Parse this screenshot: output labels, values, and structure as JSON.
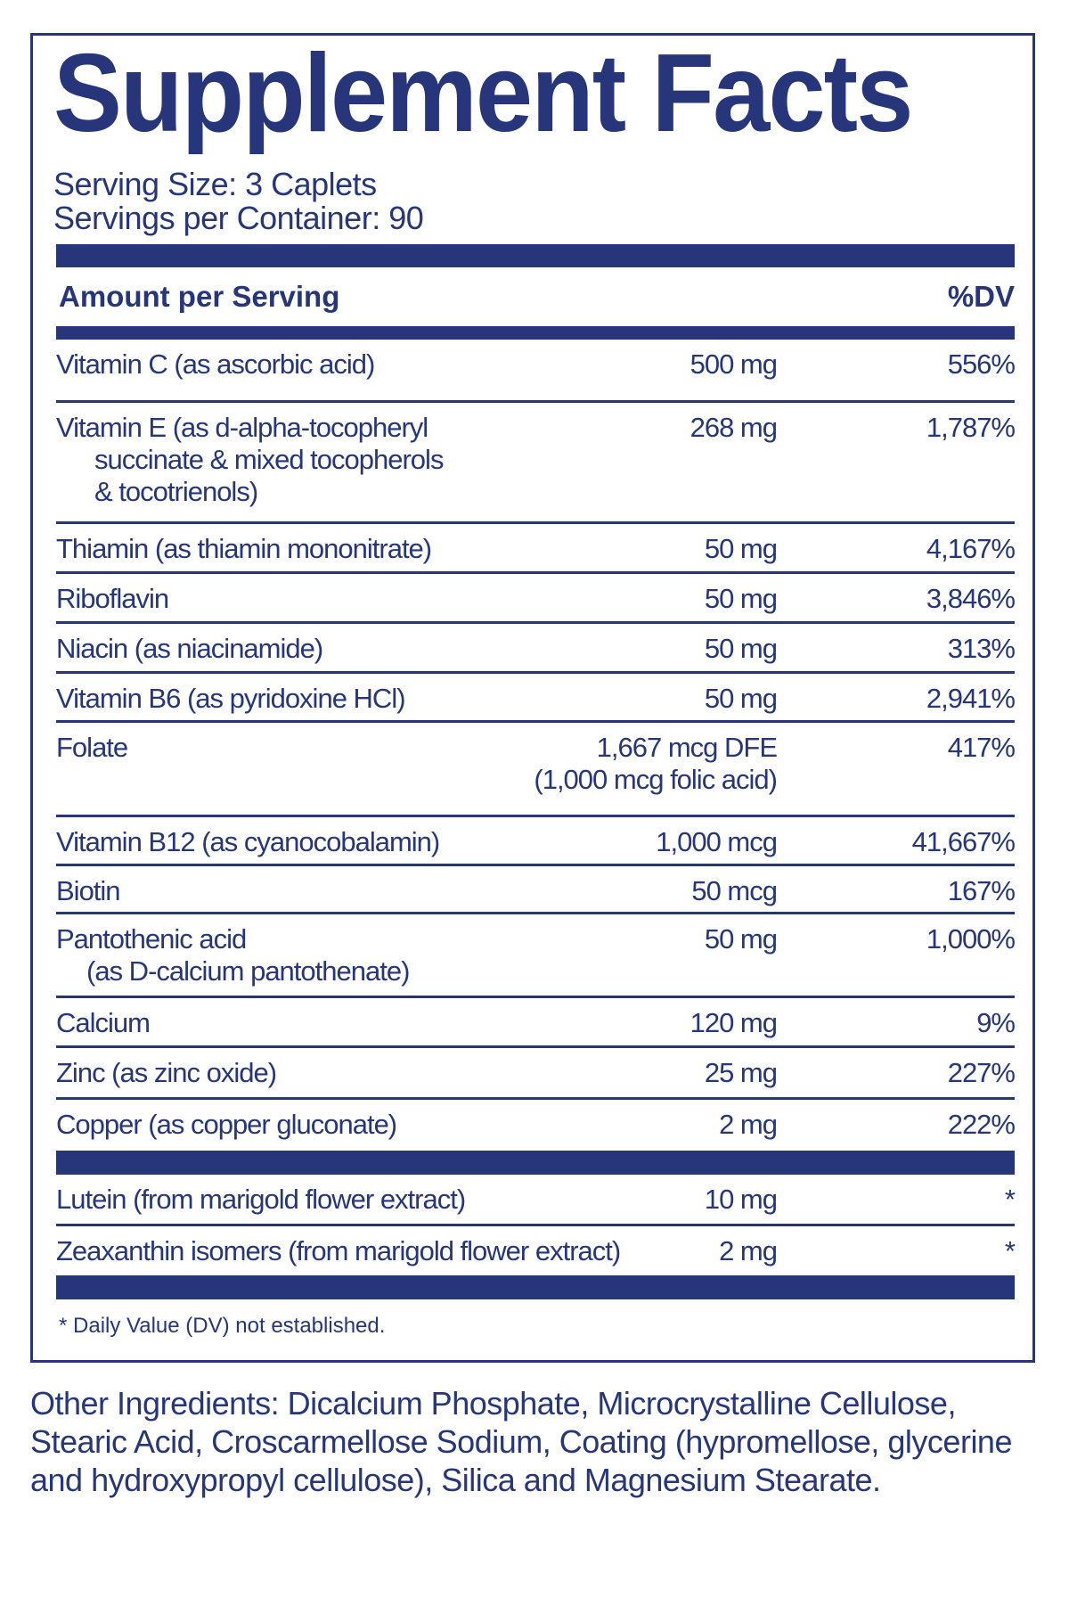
{
  "title": "Supplement Facts",
  "serving_size": "Serving Size: 3 Caplets",
  "servings_per_container": "Servings per Container: 90",
  "header": {
    "amount": "Amount per Serving",
    "dv": "%DV"
  },
  "rows": [
    {
      "name": "Vitamin C (as ascorbic acid)",
      "amount": "500 mg",
      "dv": "556%"
    },
    {
      "name": "Vitamin E (as d-alpha-tocopheryl",
      "sub": [
        "succinate & mixed tocopherols",
        "& tocotrienols)"
      ],
      "amount": "268 mg",
      "dv": "1,787%"
    },
    {
      "name": "Thiamin (as thiamin mononitrate)",
      "amount": "50 mg",
      "dv": "4,167%"
    },
    {
      "name": "Riboflavin",
      "amount": "50 mg",
      "dv": "3,846%"
    },
    {
      "name": "Niacin (as niacinamide)",
      "amount": "50 mg",
      "dv": "313%"
    },
    {
      "name": "Vitamin B6 (as pyridoxine HCl)",
      "amount": "50 mg",
      "dv": "2,941%"
    },
    {
      "name": "Folate",
      "amount": "1,667 mcg DFE",
      "amount_sub": "(1,000 mcg folic acid)",
      "dv": "417%"
    },
    {
      "name": "Vitamin B12 (as cyanocobalamin)",
      "amount": "1,000 mcg",
      "dv": "41,667%"
    },
    {
      "name": "Biotin",
      "amount": "50 mcg",
      "dv": "167%"
    },
    {
      "name": "Pantothenic acid",
      "sub": [
        "(as D-calcium pantothenate)"
      ],
      "amount": "50 mg",
      "dv": "1,000%"
    },
    {
      "name": "Calcium",
      "amount": "120 mg",
      "dv": "9%"
    },
    {
      "name": "Zinc (as zinc oxide)",
      "amount": "25 mg",
      "dv": "227%"
    },
    {
      "name": "Copper (as copper gluconate)",
      "amount": "2 mg",
      "dv": "222%"
    },
    {
      "name": "Lutein (from marigold flower extract)",
      "amount": "10 mg",
      "dv": "*"
    },
    {
      "name": "Zeaxanthin isomers (from marigold flower extract)",
      "amount": "2 mg",
      "dv": "*"
    }
  ],
  "footnote": "* Daily Value (DV) not established.",
  "other_ingredients": "Other Ingredients: Dicalcium Phosphate, Microcrystalline Cellulose, Stearic Acid, Croscarmellose Sodium, Coating (hypromellose, glycerine and hydroxypropyl cellulose), Silica and Magnesium Stearate.",
  "colors": {
    "navy": "#27367a",
    "background": "#ffffff"
  }
}
